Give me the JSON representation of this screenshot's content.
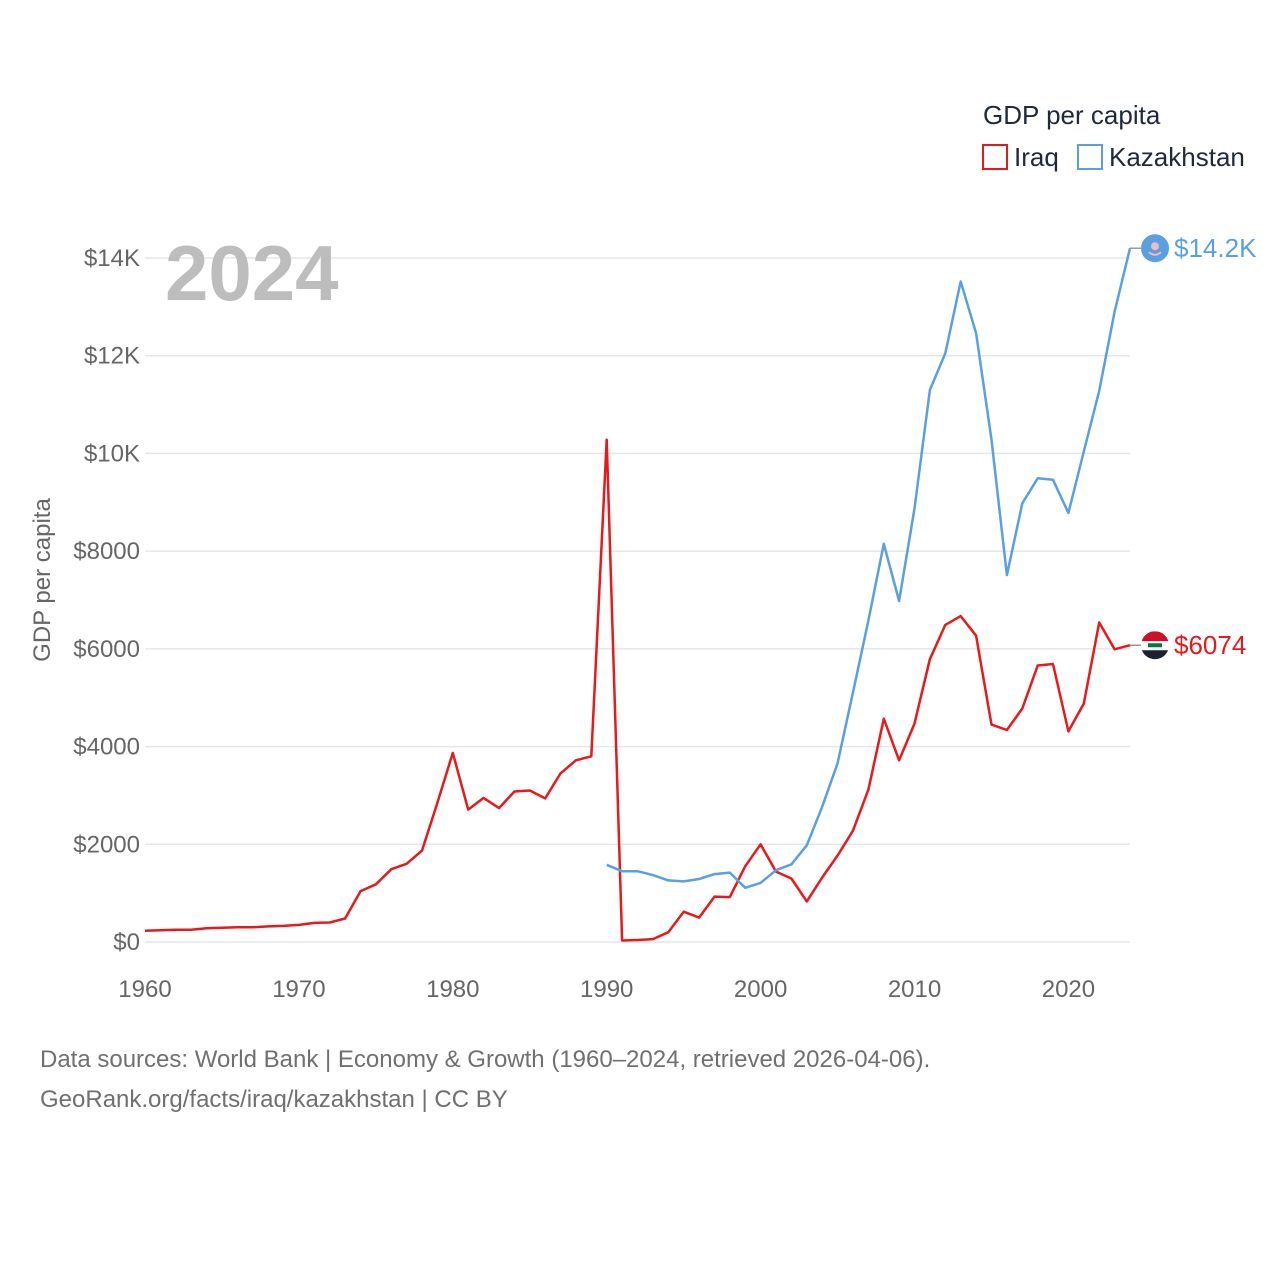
{
  "chart_data": {
    "type": "line",
    "ylabel": "GDP per capita",
    "year_label": "2024",
    "legend_title": "GDP per capita",
    "xlim": [
      1960,
      2024
    ],
    "ylim": [
      0,
      14000
    ],
    "x_ticks": [
      1960,
      1970,
      1980,
      1990,
      2000,
      2010,
      2020
    ],
    "y_ticks": [
      {
        "value": 0,
        "label": "$0"
      },
      {
        "value": 2000,
        "label": "$2000"
      },
      {
        "value": 4000,
        "label": "$4000"
      },
      {
        "value": 6000,
        "label": "$6000"
      },
      {
        "value": 8000,
        "label": "$8000"
      },
      {
        "value": 10000,
        "label": "$10K"
      },
      {
        "value": 12000,
        "label": "$12K"
      },
      {
        "value": 14000,
        "label": "$14K"
      }
    ],
    "series": [
      {
        "name": "Iraq",
        "color": "#e8191c",
        "end_label": "$6074",
        "flag_icon": "iraq-flag-icon",
        "x": [
          1960,
          1961,
          1962,
          1963,
          1964,
          1965,
          1966,
          1967,
          1968,
          1969,
          1970,
          1971,
          1972,
          1973,
          1974,
          1975,
          1976,
          1977,
          1978,
          1979,
          1980,
          1981,
          1982,
          1983,
          1984,
          1985,
          1986,
          1987,
          1988,
          1989,
          1990,
          1991,
          1992,
          1993,
          1994,
          1995,
          1996,
          1997,
          1998,
          1999,
          2000,
          2001,
          2002,
          2003,
          2004,
          2005,
          2006,
          2007,
          2008,
          2009,
          2010,
          2011,
          2012,
          2013,
          2014,
          2015,
          2016,
          2017,
          2018,
          2019,
          2020,
          2021,
          2022,
          2023,
          2024
        ],
        "values": [
          230,
          240,
          250,
          250,
          280,
          290,
          300,
          300,
          320,
          330,
          350,
          390,
          400,
          480,
          1040,
          1180,
          1490,
          1600,
          1870,
          2850,
          3870,
          2710,
          2950,
          2740,
          3080,
          3100,
          2940,
          3450,
          3720,
          3800,
          10280,
          30,
          40,
          60,
          200,
          620,
          500,
          930,
          920,
          1550,
          2000,
          1440,
          1300,
          830,
          1320,
          1770,
          2280,
          3120,
          4570,
          3720,
          4470,
          5790,
          6490,
          6670,
          6270,
          4450,
          4340,
          4780,
          5660,
          5690,
          4310,
          4880,
          6540,
          5990,
          6074
        ]
      },
      {
        "name": "Kazakhstan",
        "color": "#5aa0e0",
        "end_label": "$14.2K",
        "flag_icon": "kazakhstan-flag-icon",
        "x": [
          1990,
          1991,
          1992,
          1993,
          1994,
          1995,
          1996,
          1997,
          1998,
          1999,
          2000,
          2001,
          2002,
          2003,
          2004,
          2005,
          2006,
          2007,
          2008,
          2009,
          2010,
          2011,
          2012,
          2013,
          2014,
          2015,
          2016,
          2017,
          2018,
          2019,
          2020,
          2021,
          2022,
          2023,
          2024
        ],
        "values": [
          1580,
          1450,
          1450,
          1370,
          1260,
          1240,
          1290,
          1390,
          1420,
          1110,
          1210,
          1470,
          1590,
          1980,
          2770,
          3660,
          5110,
          6580,
          8150,
          6980,
          8870,
          11300,
          12050,
          13520,
          12460,
          10280,
          7510,
          8980,
          9490,
          9460,
          8780,
          10040,
          11280,
          12900,
          14200
        ]
      }
    ]
  },
  "source": {
    "line1": "Data sources: World Bank | Economy & Growth (1960–2024, retrieved 2026-04-06).",
    "line2": "GeoRank.org/facts/iraq/kazakhstan | CC BY"
  }
}
